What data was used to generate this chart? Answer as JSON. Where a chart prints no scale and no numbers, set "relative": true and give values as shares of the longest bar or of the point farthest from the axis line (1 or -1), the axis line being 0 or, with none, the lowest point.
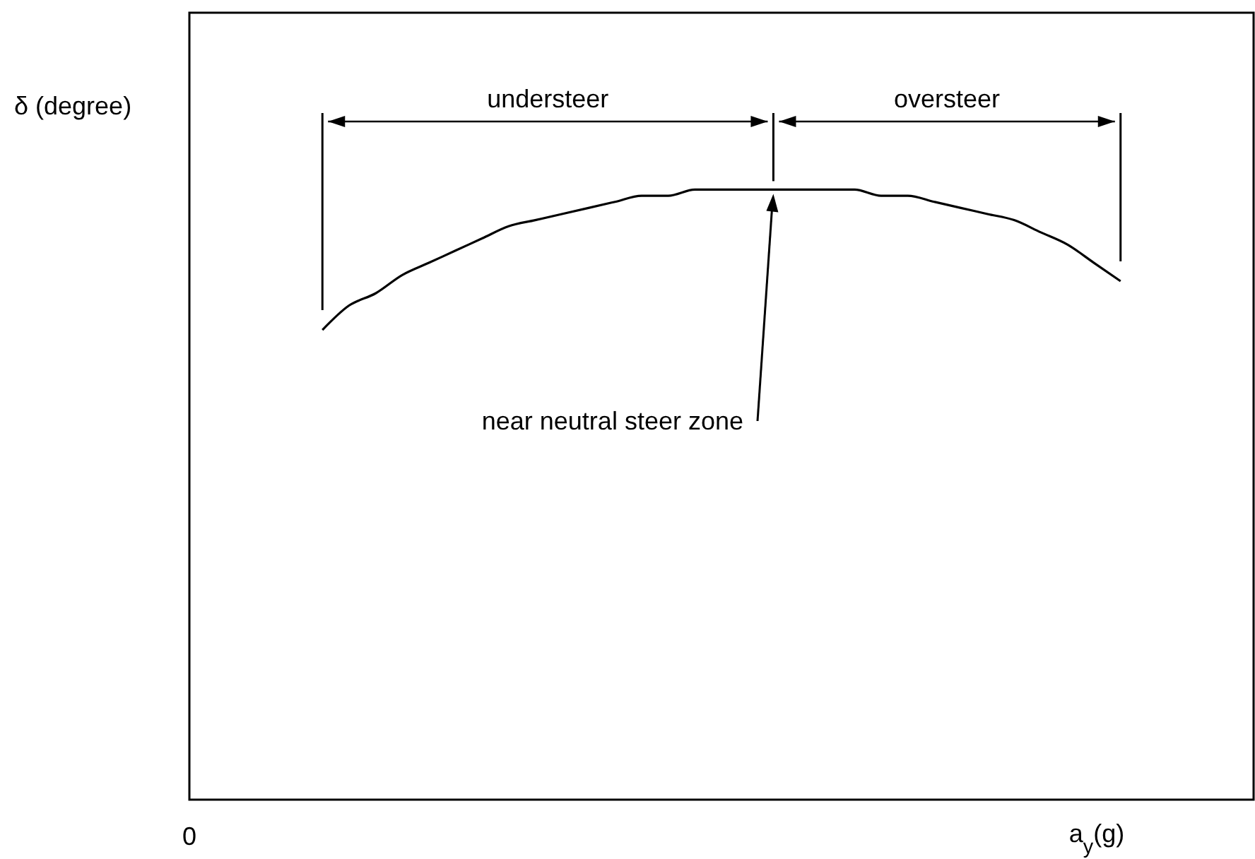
{
  "chart_data": {
    "type": "line",
    "relative": true,
    "xlabel": "a$_{y}$(g)",
    "ylabel": "δ (degree)",
    "categories": [
      null,
      null,
      null,
      null,
      null,
      null,
      null,
      null,
      null,
      null,
      null,
      null,
      null,
      null,
      null,
      null,
      null,
      null,
      null,
      null,
      null,
      null,
      null,
      null,
      null,
      null,
      null,
      null,
      null,
      null,
      null,
      null,
      null,
      null,
      null,
      null,
      null,
      null,
      null,
      null,
      null
    ],
    "series": [
      {
        "color": "#000000",
        "values": [
          null,
          null,
          null,
          null,
          null,
          0.77,
          0.81,
          0.83,
          0.86,
          0.88,
          0.9,
          0.92,
          0.94,
          0.95,
          0.96,
          0.97,
          0.98,
          0.99,
          0.99,
          1,
          1,
          1,
          1,
          1,
          1,
          1,
          0.99,
          0.99,
          0.98,
          0.97,
          0.96,
          0.95,
          0.93,
          0.91,
          0.88,
          0.85,
          null,
          null,
          null,
          null,
          null
        ]
      }
    ],
    "annotations": [
      "understeer",
      "oversteer",
      "near neutral steer zone",
      "0"
    ],
    "marker": "none",
    "line_style": "solid",
    "legend": false,
    "grid": false
  }
}
